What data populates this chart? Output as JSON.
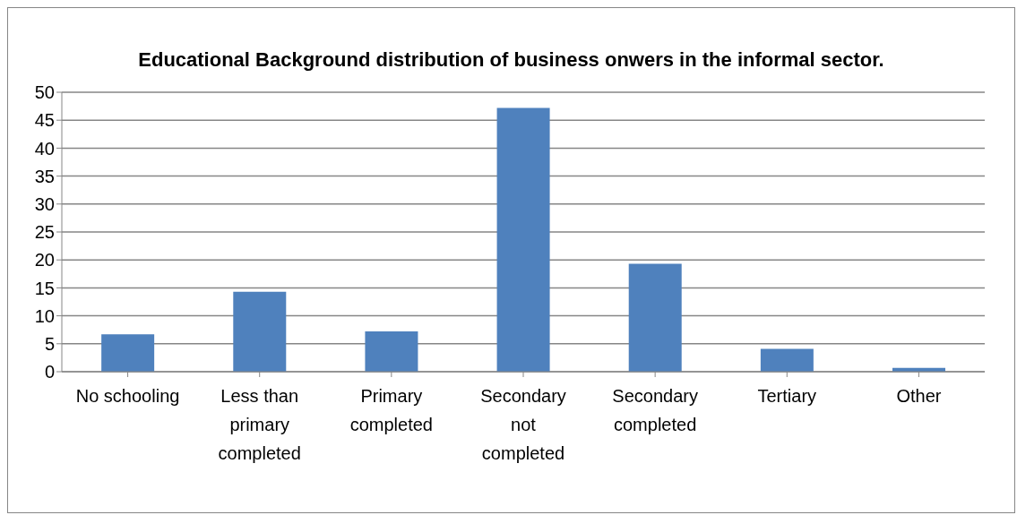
{
  "chart_data": {
    "type": "bar",
    "title": "Educational Background distribution of business onwers in the informal sector.",
    "categories": [
      "No schooling",
      "Less than primary completed",
      "Primary completed",
      "Secondary not completed",
      "Secondary completed",
      "Tertiary",
      "Other"
    ],
    "values": [
      6.7,
      14.3,
      7.2,
      47.2,
      19.3,
      4.1,
      0.7
    ],
    "color": "#4f81bd",
    "ylim": [
      0,
      50
    ],
    "yticks": [
      0,
      5,
      10,
      15,
      20,
      25,
      30,
      35,
      40,
      45,
      50
    ],
    "grid": "y",
    "legend": false
  }
}
